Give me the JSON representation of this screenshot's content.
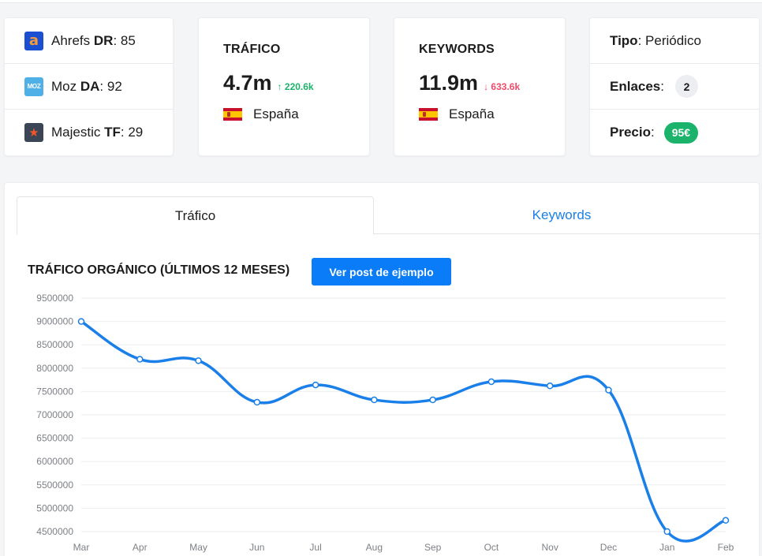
{
  "metrics": [
    {
      "icon": "ahrefs-logo-icon",
      "glyph": "a",
      "name": "Ahrefs",
      "key": "DR",
      "value": "85"
    },
    {
      "icon": "moz-logo-icon",
      "glyph": "MOZ",
      "name": "Moz",
      "key": "DA",
      "value": "92"
    },
    {
      "icon": "majestic-logo-icon",
      "glyph": "★",
      "name": "Majestic",
      "key": "TF",
      "value": "29"
    }
  ],
  "traffic_card": {
    "title": "TRÁFICO",
    "value": "4.7m",
    "delta_arrow": "↑",
    "delta": "220.6k",
    "delta_dir": "up",
    "country": "España"
  },
  "keywords_card": {
    "title": "KEYWORDS",
    "value": "11.9m",
    "delta_arrow": "↓",
    "delta": "633.6k",
    "delta_dir": "down",
    "country": "España"
  },
  "info": {
    "tipo_label": "Tipo",
    "tipo_value": "Periódico",
    "enlaces_label": "Enlaces",
    "enlaces_value": "2",
    "precio_label": "Precio",
    "precio_value": "95€"
  },
  "tabs": [
    {
      "label": "Tráfico",
      "active": true
    },
    {
      "label": "Keywords",
      "active": false
    }
  ],
  "chart_section": {
    "title": "TRÁFICO ORGÁNICO (ÚLTIMOS 12 MESES)",
    "button_label": "Ver post de ejemplo"
  },
  "colors": {
    "accent": "#0a7cf7",
    "line": "#1a7fe8",
    "positive": "#1bb36b",
    "negative": "#ef4a6a"
  },
  "chart_data": {
    "type": "line",
    "title": "TRÁFICO ORGÁNICO (ÚLTIMOS 12 MESES)",
    "categories": [
      "Mar",
      "Apr",
      "May",
      "Jun",
      "Jul",
      "Aug",
      "Sep",
      "Oct",
      "Nov",
      "Dec",
      "Jan",
      "Feb"
    ],
    "series": [
      {
        "values": [
          9000000,
          8190000,
          8160000,
          7270000,
          7640000,
          7320000,
          7320000,
          7710000,
          7620000,
          7530000,
          4500000,
          4740000
        ]
      }
    ],
    "yticks": [
      9500000,
      9000000,
      8500000,
      8000000,
      7500000,
      7000000,
      6500000,
      6000000,
      5500000,
      5000000,
      4500000
    ],
    "ylim": [
      4500000,
      9500000
    ],
    "grid": true,
    "legend": "none"
  }
}
